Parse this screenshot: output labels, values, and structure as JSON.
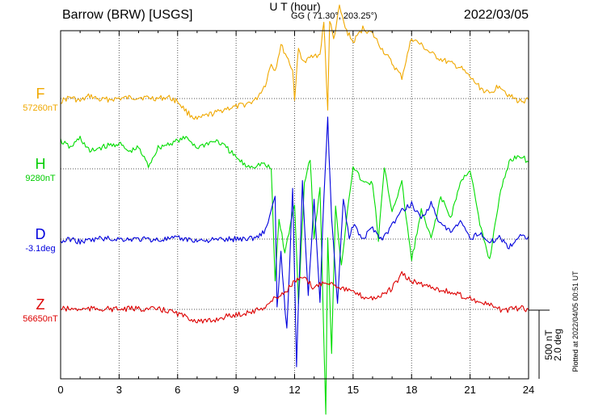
{
  "header": {
    "station": "Barrow (BRW)  [USGS]",
    "coords": "GG ( 71.30°, 203.25°)",
    "date": "2022/03/05"
  },
  "scale": {
    "nt": "500 nT",
    "deg": "2.0 deg"
  },
  "plotted": "Plotted at 2022/04/05 00:51 UT",
  "chart_data": {
    "type": "line",
    "title": "Barrow (BRW)  [USGS]",
    "xlabel": "U T (hour)",
    "ylabel": "",
    "xlim": [
      0,
      24
    ],
    "xticks": [
      0,
      3,
      6,
      9,
      12,
      15,
      18,
      21,
      24
    ],
    "grid": true,
    "series": [
      {
        "name": "F",
        "baseline": "57260nT",
        "color": "#f0a800",
        "offset": 0,
        "points": [
          [
            0,
            20
          ],
          [
            0.5,
            -10
          ],
          [
            1,
            20
          ],
          [
            1.5,
            -20
          ],
          [
            2,
            10
          ],
          [
            3,
            0
          ],
          [
            4,
            -10
          ],
          [
            5,
            0
          ],
          [
            5.5,
            -10
          ],
          [
            6,
            20
          ],
          [
            6.5,
            100
          ],
          [
            7,
            150
          ],
          [
            7.5,
            120
          ],
          [
            8,
            100
          ],
          [
            8.5,
            70
          ],
          [
            9,
            60
          ],
          [
            9.5,
            40
          ],
          [
            10,
            10
          ],
          [
            10.5,
            -100
          ],
          [
            10.8,
            -250
          ],
          [
            11,
            -200
          ],
          [
            11.3,
            -380
          ],
          [
            11.6,
            -300
          ],
          [
            11.9,
            -200
          ],
          [
            12,
            0
          ],
          [
            12.2,
            -350
          ],
          [
            12.5,
            -250
          ],
          [
            13,
            -320
          ],
          [
            13.3,
            -300
          ],
          [
            13.5,
            -550
          ],
          [
            13.7,
            80
          ],
          [
            13.8,
            -560
          ],
          [
            14,
            -420
          ],
          [
            14.3,
            -650
          ],
          [
            14.6,
            -500
          ],
          [
            15,
            -400
          ],
          [
            15.5,
            -500
          ],
          [
            16,
            -460
          ],
          [
            16.5,
            -350
          ],
          [
            17,
            -250
          ],
          [
            17.5,
            -150
          ],
          [
            18,
            -430
          ],
          [
            18.5,
            -380
          ],
          [
            19,
            -320
          ],
          [
            19.5,
            -280
          ],
          [
            20,
            -250
          ],
          [
            20.5,
            -220
          ],
          [
            21,
            -150
          ],
          [
            21.5,
            -80
          ],
          [
            22,
            -30
          ],
          [
            22.5,
            -100
          ],
          [
            23,
            -20
          ],
          [
            23.5,
            20
          ],
          [
            24,
            10
          ]
        ]
      },
      {
        "name": "H",
        "baseline": "9280nT",
        "color": "#00dd00",
        "offset": 0,
        "points": [
          [
            0,
            -200
          ],
          [
            0.5,
            -150
          ],
          [
            1,
            -220
          ],
          [
            1.5,
            -120
          ],
          [
            2,
            -150
          ],
          [
            3,
            -180
          ],
          [
            3.5,
            -120
          ],
          [
            4,
            -150
          ],
          [
            4.5,
            -20
          ],
          [
            5,
            -150
          ],
          [
            6,
            -200
          ],
          [
            6.5,
            -220
          ],
          [
            7,
            -150
          ],
          [
            7.5,
            -180
          ],
          [
            8,
            -200
          ],
          [
            8.5,
            -150
          ],
          [
            9,
            -80
          ],
          [
            9.5,
            -20
          ],
          [
            10,
            -20
          ],
          [
            10.3,
            -40
          ],
          [
            10.8,
            0
          ],
          [
            11,
            800
          ],
          [
            11.2,
            350
          ],
          [
            11.5,
            600
          ],
          [
            12,
            250
          ],
          [
            12.2,
            950
          ],
          [
            12.5,
            100
          ],
          [
            12.8,
            -80
          ],
          [
            13,
            500
          ],
          [
            13.3,
            120
          ],
          [
            13.6,
            1750
          ],
          [
            13.7,
            500
          ],
          [
            13.9,
            1300
          ],
          [
            14.1,
            250
          ],
          [
            14.4,
            700
          ],
          [
            14.7,
            300
          ],
          [
            15,
            -20
          ],
          [
            15.5,
            100
          ],
          [
            16,
            100
          ],
          [
            16.3,
            500
          ],
          [
            16.6,
            0
          ],
          [
            17,
            300
          ],
          [
            17.5,
            100
          ],
          [
            18,
            650
          ],
          [
            18.5,
            300
          ],
          [
            19,
            500
          ],
          [
            19.5,
            200
          ],
          [
            20,
            350
          ],
          [
            20.5,
            100
          ],
          [
            21,
            0
          ],
          [
            21.5,
            400
          ],
          [
            22,
            650
          ],
          [
            22.5,
            200
          ],
          [
            23,
            -50
          ],
          [
            23.5,
            -100
          ],
          [
            24,
            -50
          ]
        ]
      },
      {
        "name": "D",
        "baseline": "-3.1deg",
        "color": "#0000dd",
        "offset": 0,
        "points": [
          [
            0,
            20
          ],
          [
            0.5,
            0
          ],
          [
            1,
            20
          ],
          [
            1.5,
            10
          ],
          [
            2,
            -5
          ],
          [
            3,
            0
          ],
          [
            4,
            0
          ],
          [
            5,
            5
          ],
          [
            6,
            -5
          ],
          [
            7,
            10
          ],
          [
            8,
            5
          ],
          [
            9,
            0
          ],
          [
            10,
            -10
          ],
          [
            10.5,
            -60
          ],
          [
            11,
            -300
          ],
          [
            11.1,
            500
          ],
          [
            11.3,
            100
          ],
          [
            11.6,
            650
          ],
          [
            11.9,
            -350
          ],
          [
            12.1,
            900
          ],
          [
            12.4,
            -400
          ],
          [
            12.7,
            400
          ],
          [
            13,
            -300
          ],
          [
            13.3,
            450
          ],
          [
            13.5,
            -300
          ],
          [
            13.7,
            -850
          ],
          [
            13.9,
            -150
          ],
          [
            14.2,
            450
          ],
          [
            14.5,
            -300
          ],
          [
            14.8,
            0
          ],
          [
            15,
            -100
          ],
          [
            15.5,
            0
          ],
          [
            16,
            -80
          ],
          [
            16.5,
            0
          ],
          [
            17,
            -100
          ],
          [
            17.5,
            -200
          ],
          [
            18,
            -250
          ],
          [
            18.5,
            -150
          ],
          [
            19,
            -250
          ],
          [
            19.5,
            -100
          ],
          [
            20,
            -50
          ],
          [
            20.5,
            -120
          ],
          [
            21,
            0
          ],
          [
            21.5,
            -50
          ],
          [
            22,
            30
          ],
          [
            22.5,
            -20
          ],
          [
            23,
            60
          ],
          [
            23.5,
            -20
          ],
          [
            24,
            -20
          ]
        ]
      },
      {
        "name": "Z",
        "baseline": "56650nT",
        "color": "#dd0000",
        "offset": 0,
        "points": [
          [
            0,
            -5
          ],
          [
            1,
            0
          ],
          [
            2,
            -5
          ],
          [
            3,
            0
          ],
          [
            4,
            -5
          ],
          [
            5,
            0
          ],
          [
            5.5,
            10
          ],
          [
            6,
            30
          ],
          [
            6.5,
            60
          ],
          [
            7,
            80
          ],
          [
            7.5,
            90
          ],
          [
            8,
            70
          ],
          [
            8.5,
            50
          ],
          [
            9,
            40
          ],
          [
            10,
            10
          ],
          [
            10.5,
            -20
          ],
          [
            11,
            -80
          ],
          [
            11.5,
            -120
          ],
          [
            12,
            -200
          ],
          [
            12.5,
            -220
          ],
          [
            13,
            -150
          ],
          [
            13.5,
            -200
          ],
          [
            14,
            -180
          ],
          [
            14.5,
            -150
          ],
          [
            15,
            -120
          ],
          [
            15.5,
            -90
          ],
          [
            16,
            -80
          ],
          [
            16.5,
            -100
          ],
          [
            17,
            -150
          ],
          [
            17.5,
            -250
          ],
          [
            18,
            -200
          ],
          [
            18.5,
            -180
          ],
          [
            19,
            -160
          ],
          [
            19.5,
            -140
          ],
          [
            20,
            -120
          ],
          [
            20.5,
            -100
          ],
          [
            21,
            -80
          ],
          [
            21.5,
            -50
          ],
          [
            22,
            -30
          ],
          [
            22.5,
            0
          ],
          [
            23,
            5
          ],
          [
            23.5,
            -10
          ],
          [
            24,
            0
          ]
        ]
      }
    ]
  }
}
